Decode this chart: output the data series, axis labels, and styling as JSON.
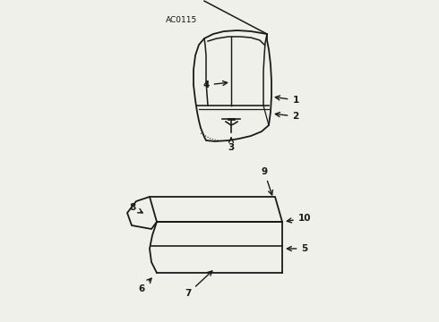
{
  "title": "AC0115",
  "bg_color": "#f0f0eb",
  "line_color": "#1a1a1a",
  "label_color": "#111111",
  "figsize": [
    4.9,
    3.6
  ],
  "dpi": 100
}
